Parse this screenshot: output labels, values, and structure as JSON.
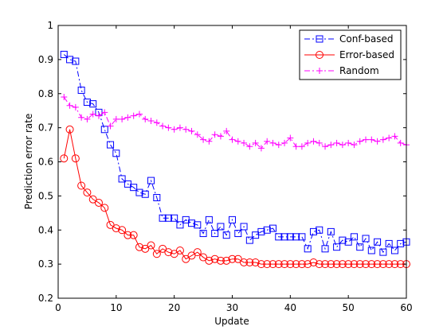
{
  "chart_data": {
    "type": "line",
    "xlabel": "Update",
    "ylabel": "Prediction error rate",
    "xlim": [
      0,
      60
    ],
    "ylim": [
      0.2,
      1
    ],
    "xticks": [
      0,
      10,
      20,
      30,
      40,
      50,
      60
    ],
    "yticks": [
      0.2,
      0.3,
      0.4,
      0.5,
      0.6,
      0.7,
      0.8,
      0.9,
      1
    ],
    "legend_position": "top-right",
    "series": [
      {
        "name": "Conf-based",
        "color": "#0000ff",
        "marker": "square",
        "line_style": "dash-dot",
        "x": [
          1,
          2,
          3,
          4,
          5,
          6,
          7,
          8,
          9,
          10,
          11,
          12,
          13,
          14,
          15,
          16,
          17,
          18,
          19,
          20,
          21,
          22,
          23,
          24,
          25,
          26,
          27,
          28,
          29,
          30,
          31,
          32,
          33,
          34,
          35,
          36,
          37,
          38,
          39,
          40,
          41,
          42,
          43,
          44,
          45,
          46,
          47,
          48,
          49,
          50,
          51,
          52,
          53,
          54,
          55,
          56,
          57,
          58,
          59,
          60
        ],
        "y": [
          0.915,
          0.9,
          0.895,
          0.81,
          0.775,
          0.77,
          0.745,
          0.695,
          0.65,
          0.625,
          0.55,
          0.535,
          0.525,
          0.51,
          0.505,
          0.545,
          0.495,
          0.435,
          0.435,
          0.435,
          0.415,
          0.43,
          0.42,
          0.415,
          0.39,
          0.43,
          0.39,
          0.41,
          0.385,
          0.43,
          0.39,
          0.41,
          0.37,
          0.385,
          0.395,
          0.4,
          0.405,
          0.38,
          0.38,
          0.38,
          0.38,
          0.38,
          0.345,
          0.395,
          0.4,
          0.345,
          0.395,
          0.35,
          0.37,
          0.365,
          0.38,
          0.35,
          0.375,
          0.34,
          0.365,
          0.335,
          0.36,
          0.34,
          0.36,
          0.365
        ]
      },
      {
        "name": "Error-based",
        "color": "#ff0000",
        "marker": "circle",
        "line_style": "solid",
        "x": [
          1,
          2,
          3,
          4,
          5,
          6,
          7,
          8,
          9,
          10,
          11,
          12,
          13,
          14,
          15,
          16,
          17,
          18,
          19,
          20,
          21,
          22,
          23,
          24,
          25,
          26,
          27,
          28,
          29,
          30,
          31,
          32,
          33,
          34,
          35,
          36,
          37,
          38,
          39,
          40,
          41,
          42,
          43,
          44,
          45,
          46,
          47,
          48,
          49,
          50,
          51,
          52,
          53,
          54,
          55,
          56,
          57,
          58,
          59,
          60
        ],
        "y": [
          0.61,
          0.695,
          0.61,
          0.53,
          0.51,
          0.49,
          0.48,
          0.465,
          0.415,
          0.405,
          0.4,
          0.385,
          0.385,
          0.35,
          0.345,
          0.355,
          0.33,
          0.345,
          0.335,
          0.33,
          0.34,
          0.315,
          0.325,
          0.335,
          0.32,
          0.31,
          0.315,
          0.31,
          0.31,
          0.315,
          0.315,
          0.305,
          0.305,
          0.305,
          0.3,
          0.3,
          0.3,
          0.3,
          0.3,
          0.3,
          0.3,
          0.3,
          0.3,
          0.305,
          0.3,
          0.3,
          0.3,
          0.3,
          0.3,
          0.3,
          0.3,
          0.3,
          0.3,
          0.3,
          0.3,
          0.3,
          0.3,
          0.3,
          0.3,
          0.3
        ]
      },
      {
        "name": "Random",
        "color": "#ff00ff",
        "marker": "plus",
        "line_style": "dash-dot",
        "x": [
          1,
          2,
          3,
          4,
          5,
          6,
          7,
          8,
          9,
          10,
          11,
          12,
          13,
          14,
          15,
          16,
          17,
          18,
          19,
          20,
          21,
          22,
          23,
          24,
          25,
          26,
          27,
          28,
          29,
          30,
          31,
          32,
          33,
          34,
          35,
          36,
          37,
          38,
          39,
          40,
          41,
          42,
          43,
          44,
          45,
          46,
          47,
          48,
          49,
          50,
          51,
          52,
          53,
          54,
          55,
          56,
          57,
          58,
          59,
          60
        ],
        "y": [
          0.79,
          0.765,
          0.76,
          0.73,
          0.725,
          0.74,
          0.735,
          0.745,
          0.705,
          0.725,
          0.725,
          0.73,
          0.735,
          0.74,
          0.725,
          0.72,
          0.715,
          0.705,
          0.7,
          0.695,
          0.7,
          0.695,
          0.69,
          0.68,
          0.665,
          0.66,
          0.68,
          0.675,
          0.69,
          0.665,
          0.66,
          0.655,
          0.645,
          0.655,
          0.64,
          0.66,
          0.655,
          0.65,
          0.655,
          0.67,
          0.645,
          0.645,
          0.655,
          0.66,
          0.655,
          0.645,
          0.65,
          0.655,
          0.65,
          0.655,
          0.65,
          0.66,
          0.665,
          0.665,
          0.66,
          0.665,
          0.67,
          0.675,
          0.655,
          0.65
        ]
      }
    ]
  }
}
